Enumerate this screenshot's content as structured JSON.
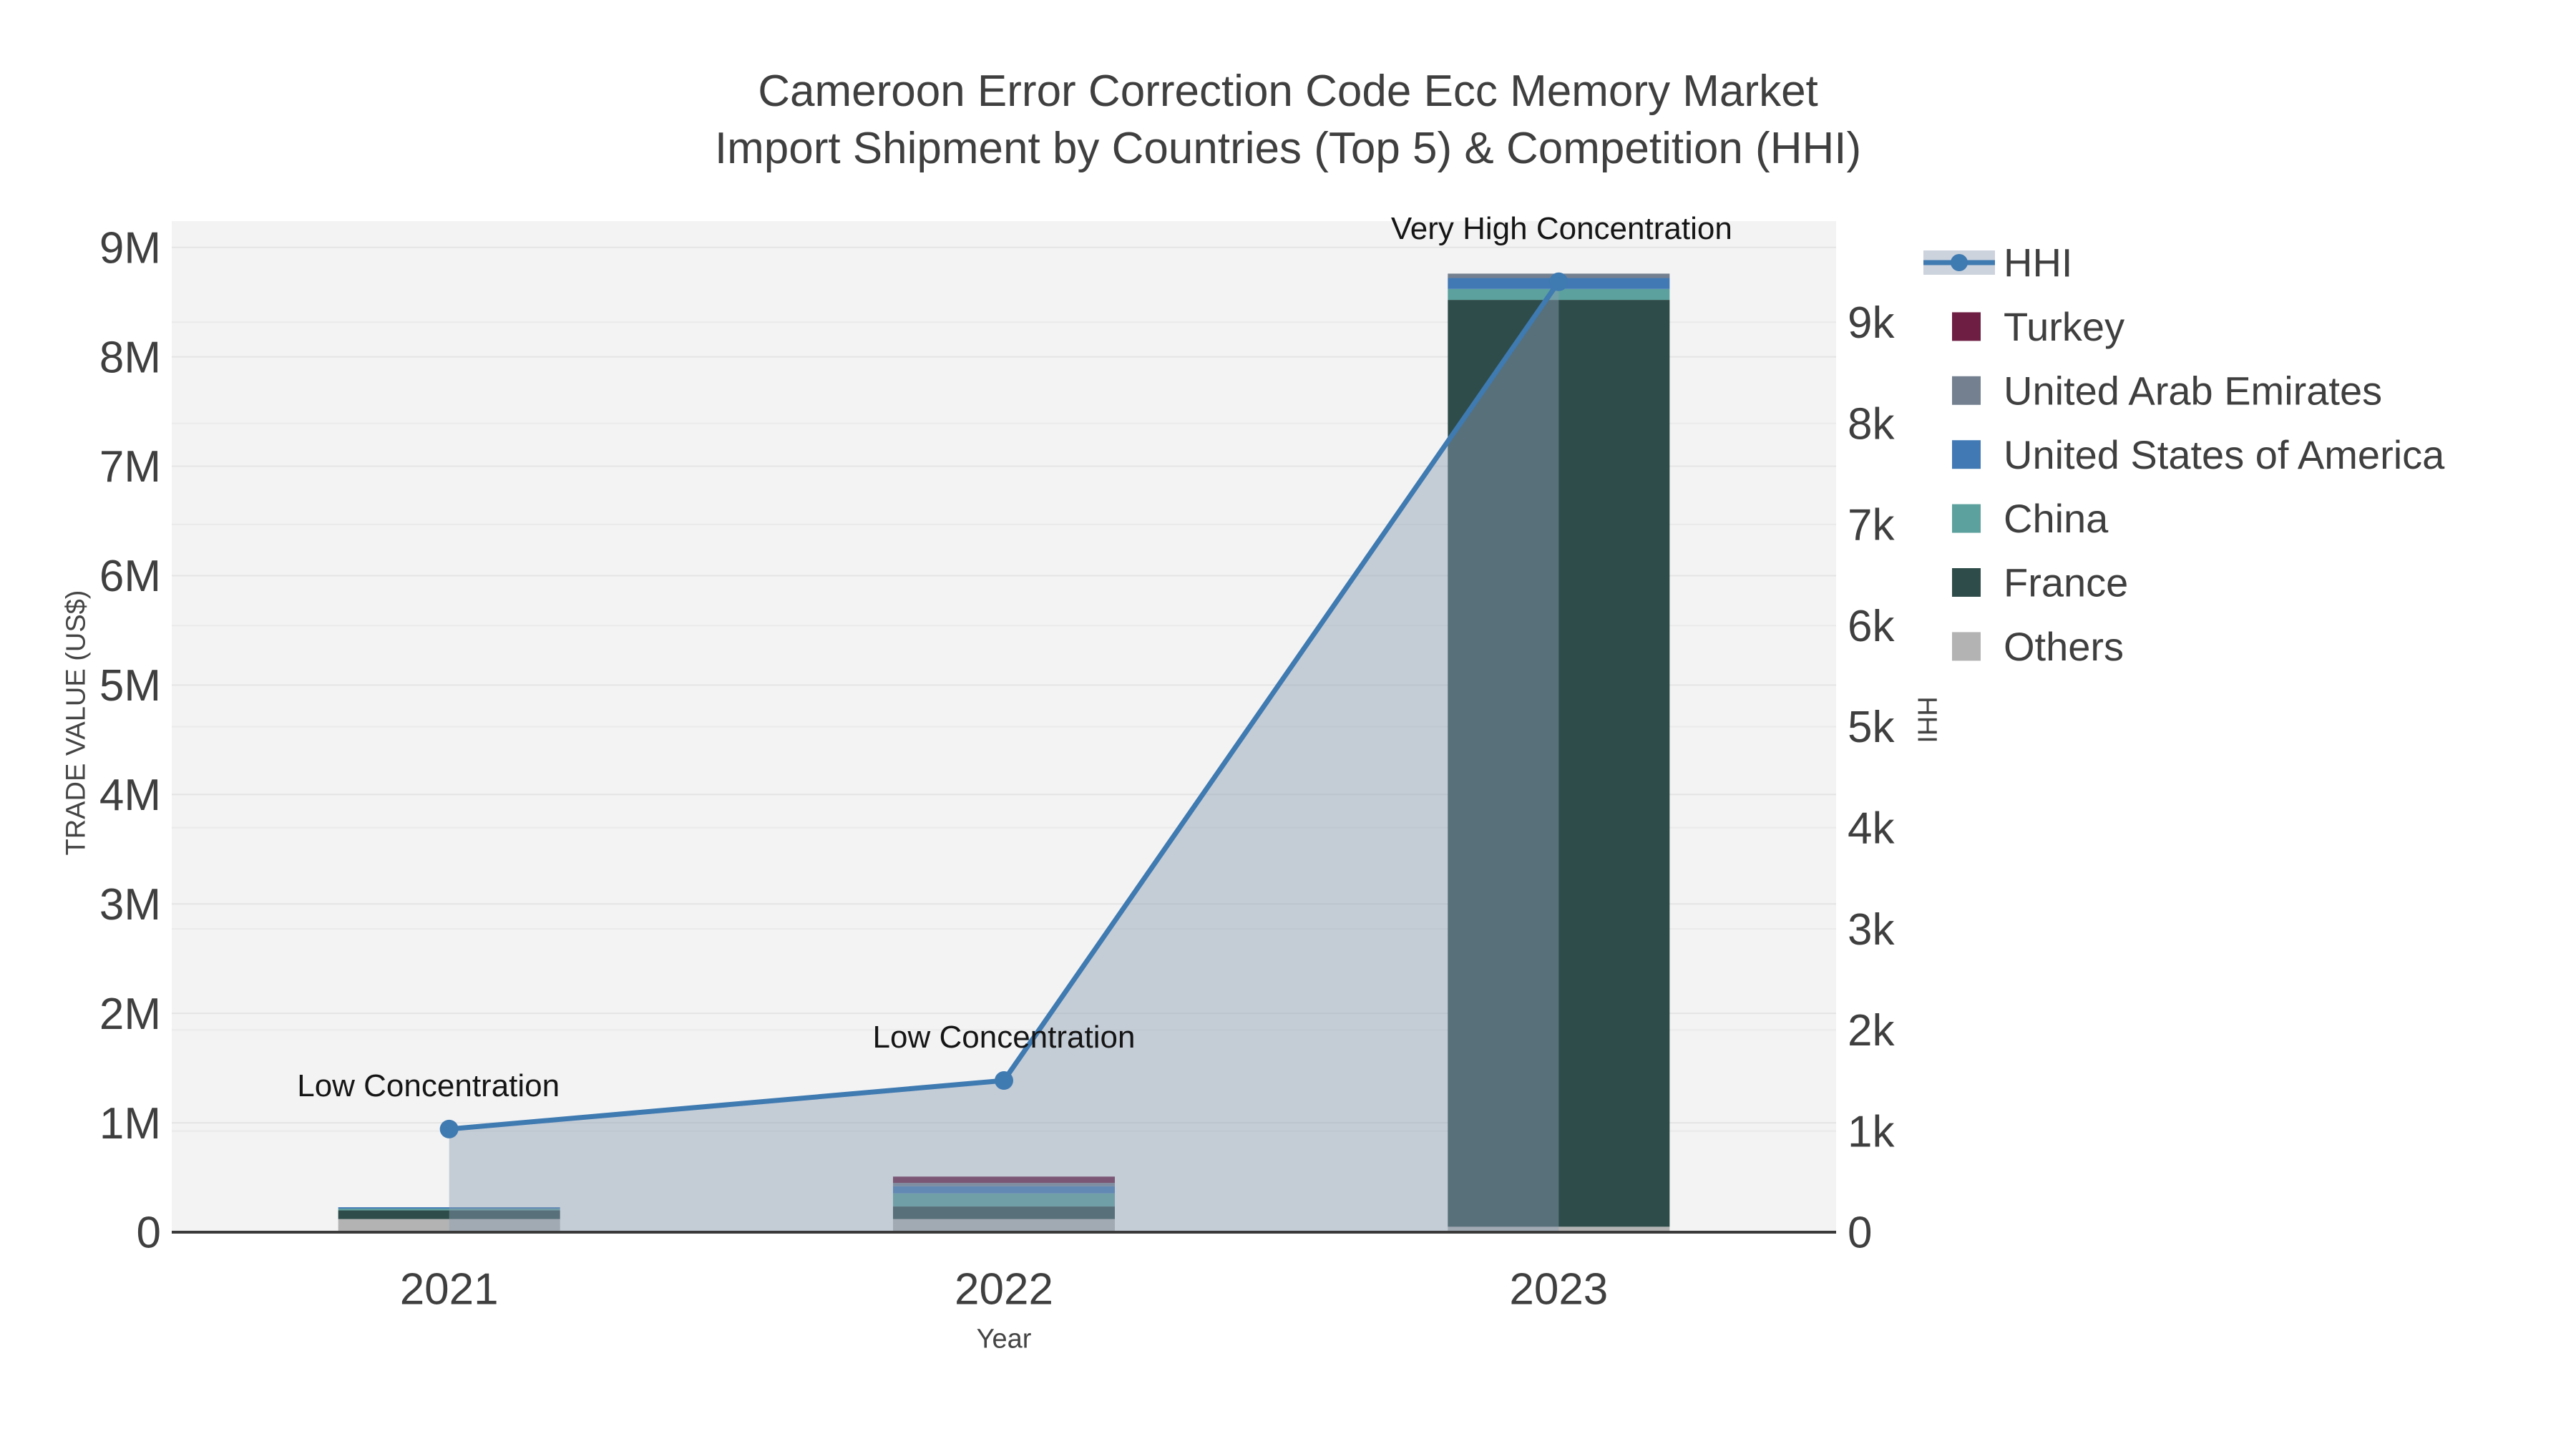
{
  "title": {
    "line1": "Cameroon Error Correction Code Ecc Memory Market",
    "line2": "Import Shipment by Countries (Top 5) & Competition (HHI)"
  },
  "colors": {
    "background": "#ffffff",
    "plot_background": "#f3f3f3",
    "grid_left": "#e4e4e4",
    "grid_right": "#eaeaea",
    "axis_line": "#3a3a3a",
    "tick_text": "#3f3f3f",
    "annotation_text": "#151515",
    "hhi_line": "#3f7ab1",
    "hhi_fill": "rgba(140,158,180,0.45)",
    "legend_band": "#ccd3dd"
  },
  "chart_data": {
    "type": "combo: stacked bar (trade value) + line with area fill (HHI, right axis)",
    "categories": [
      "2021",
      "2022",
      "2023"
    ],
    "xlabel": "Year",
    "ylabel_left": "TRADE VALUE (US$)",
    "ylabel_right": "HHI",
    "y_left_ticks": [
      "0",
      "1M",
      "2M",
      "3M",
      "4M",
      "5M",
      "6M",
      "7M",
      "8M",
      "9M"
    ],
    "y_right_ticks": [
      "0",
      "1k",
      "2k",
      "3k",
      "4k",
      "5k",
      "6k",
      "7k",
      "8k",
      "9k"
    ],
    "y_left_tick_values": [
      0,
      1000000,
      2000000,
      3000000,
      4000000,
      5000000,
      6000000,
      7000000,
      8000000,
      9000000
    ],
    "y_right_tick_values": [
      0,
      1000,
      2000,
      3000,
      4000,
      5000,
      6000,
      7000,
      8000,
      9000
    ],
    "y_left_max": 9240000,
    "y_right_max": 10000,
    "bar_series": [
      {
        "name": "Others",
        "color": "#b3b3b3",
        "values": [
          120000,
          120000,
          50000
        ]
      },
      {
        "name": "France",
        "color": "#2e4c49",
        "values": [
          80000,
          115000,
          8470000
        ]
      },
      {
        "name": "China",
        "color": "#5ca19d",
        "values": [
          15000,
          120000,
          100000
        ]
      },
      {
        "name": "United States of America",
        "color": "#4179b5",
        "values": [
          13000,
          65000,
          100000
        ]
      },
      {
        "name": "United Arab Emirates",
        "color": "#748090",
        "values": [
          0,
          30000,
          40000
        ]
      },
      {
        "name": "Turkey",
        "color": "#6e1e43",
        "values": [
          0,
          58000,
          0
        ]
      }
    ],
    "line_series": {
      "name": "HHI",
      "yaxis": "right",
      "values": [
        1020,
        1500,
        9400
      ]
    },
    "annotations": [
      {
        "category": "2021",
        "text": "Low Concentration"
      },
      {
        "category": "2022",
        "text": "Low Concentration"
      },
      {
        "category": "2023",
        "text": "Very High Concentration"
      }
    ],
    "legend": [
      {
        "label": "HHI",
        "marker": "line"
      },
      {
        "label": "Turkey",
        "marker": "square",
        "color": "#6e1e43"
      },
      {
        "label": "United Arab Emirates",
        "marker": "square",
        "color": "#748090"
      },
      {
        "label": "United States of America",
        "marker": "square",
        "color": "#4179b5"
      },
      {
        "label": "China",
        "marker": "square",
        "color": "#5ca19d"
      },
      {
        "label": "France",
        "marker": "square",
        "color": "#2e4c49"
      },
      {
        "label": "Others",
        "marker": "square",
        "color": "#b3b3b3"
      }
    ]
  }
}
